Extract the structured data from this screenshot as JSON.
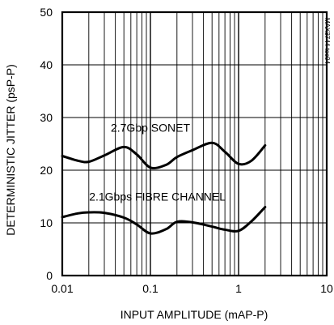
{
  "chart_data": {
    "type": "line",
    "xlabel": "INPUT AMPLITUDE (mAP-P)",
    "ylabel": "DETERMINISTIC JITTER (psP-P)",
    "x_scale": "log",
    "xlim": [
      0.01,
      10
    ],
    "ylim": [
      0,
      50
    ],
    "x_ticks": [
      "0.01",
      "0.1",
      "1",
      "10"
    ],
    "y_ticks": [
      "0",
      "10",
      "20",
      "30",
      "40",
      "50"
    ],
    "grid": true,
    "legend": "none",
    "annotation": "MAX3744 toc04",
    "series": [
      {
        "name": "2.7Gbp SONET",
        "x": [
          0.01,
          0.015,
          0.02,
          0.03,
          0.05,
          0.07,
          0.1,
          0.15,
          0.2,
          0.3,
          0.5,
          0.7,
          1.0,
          1.4,
          2.0
        ],
        "y": [
          22.7,
          21.8,
          21.6,
          22.8,
          24.4,
          23.0,
          20.5,
          21.0,
          22.5,
          23.8,
          25.2,
          23.5,
          21.2,
          21.8,
          24.7
        ]
      },
      {
        "name": "2.1Gbps FIBRE CHANNEL",
        "x": [
          0.01,
          0.015,
          0.02,
          0.03,
          0.05,
          0.07,
          0.1,
          0.15,
          0.2,
          0.3,
          0.5,
          0.7,
          1.0,
          1.4,
          2.0
        ],
        "y": [
          11.1,
          11.8,
          12.0,
          11.9,
          11.0,
          9.7,
          8.0,
          8.8,
          10.2,
          10.1,
          9.3,
          8.7,
          8.5,
          10.3,
          13.0
        ]
      }
    ]
  }
}
